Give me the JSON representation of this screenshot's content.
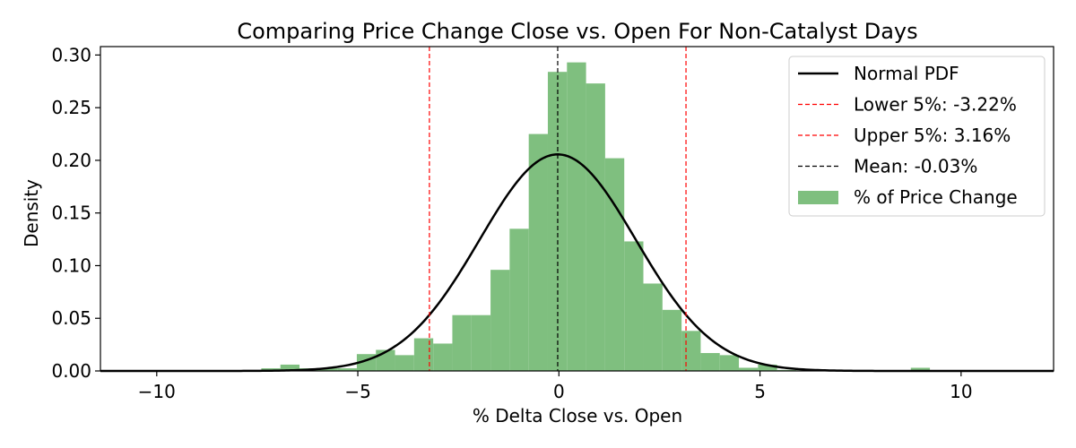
{
  "chart_data": {
    "type": "histogram",
    "title": "Comparing Price Change Close vs. Open For Non-Catalyst Days",
    "xlabel": "% Delta Close vs. Open",
    "ylabel": "Density",
    "xlim": [
      -11.4,
      12.3
    ],
    "ylim": [
      0,
      0.308
    ],
    "xticks": [
      -10,
      -5,
      0,
      5,
      10
    ],
    "xtick_labels": [
      "−10",
      "−5",
      "0",
      "5",
      "10"
    ],
    "yticks": [
      0.0,
      0.05,
      0.1,
      0.15,
      0.2,
      0.25,
      0.3
    ],
    "ytick_labels": [
      "0.00",
      "0.05",
      "0.10",
      "0.15",
      "0.20",
      "0.25",
      "0.30"
    ],
    "grid": false,
    "legend_position": "top-right",
    "histogram": {
      "name": "% of Price Change",
      "color": "#7fbf7f",
      "bin_width": 0.475,
      "bins": [
        [
          -11.2,
          0.0006
        ],
        [
          -10.725,
          0.0006
        ],
        [
          -10.25,
          0.0006
        ],
        [
          -9.775,
          0.0006
        ],
        [
          -9.3,
          0.0006
        ],
        [
          -8.825,
          0.0006
        ],
        [
          -8.35,
          0.0006
        ],
        [
          -7.875,
          0.0006
        ],
        [
          -7.4,
          0.0025
        ],
        [
          -6.925,
          0.006
        ],
        [
          -6.45,
          0.0025
        ],
        [
          -5.975,
          0.0025
        ],
        [
          -5.5,
          0.0025
        ],
        [
          -5.025,
          0.016
        ],
        [
          -4.55,
          0.02
        ],
        [
          -4.075,
          0.015
        ],
        [
          -3.6,
          0.031
        ],
        [
          -3.125,
          0.026
        ],
        [
          -2.65,
          0.053
        ],
        [
          -2.175,
          0.053
        ],
        [
          -1.7,
          0.096
        ],
        [
          -1.225,
          0.135
        ],
        [
          -0.75,
          0.225
        ],
        [
          -0.275,
          0.284
        ],
        [
          0.2,
          0.293
        ],
        [
          0.675,
          0.273
        ],
        [
          1.15,
          0.202
        ],
        [
          1.625,
          0.123
        ],
        [
          2.1,
          0.083
        ],
        [
          2.575,
          0.058
        ],
        [
          3.05,
          0.038
        ],
        [
          3.525,
          0.017
        ],
        [
          4.0,
          0.015
        ],
        [
          4.475,
          0.003
        ],
        [
          4.95,
          0.006
        ],
        [
          5.425,
          0.001
        ],
        [
          5.9,
          0.0006
        ],
        [
          6.375,
          0.0006
        ],
        [
          6.85,
          0.0006
        ],
        [
          7.325,
          0.0006
        ],
        [
          7.8,
          0.0006
        ],
        [
          8.275,
          0.0006
        ],
        [
          8.75,
          0.003
        ],
        [
          9.225,
          0.0006
        ],
        [
          9.7,
          0.0006
        ],
        [
          10.175,
          0.0006
        ],
        [
          10.65,
          0.0006
        ],
        [
          11.125,
          0.0006
        ],
        [
          11.6,
          0.0006
        ]
      ]
    },
    "normal_pdf": {
      "name": "Normal PDF",
      "mean": -0.03,
      "std": 1.94,
      "color": "#000000"
    },
    "vlines": [
      {
        "name": "Lower 5%: -3.22%",
        "x": -3.22,
        "color": "#ff0000"
      },
      {
        "name": "Upper 5%: 3.16%",
        "x": 3.16,
        "color": "#ff0000"
      },
      {
        "name": "Mean: -0.03%",
        "x": -0.03,
        "color": "#000000"
      }
    ],
    "legend": [
      {
        "label": "Normal PDF",
        "kind": "line",
        "color": "#000000"
      },
      {
        "label": "Lower 5%: -3.22%",
        "kind": "dash",
        "color": "#ff0000"
      },
      {
        "label": "Upper 5%: 3.16%",
        "kind": "dash",
        "color": "#ff0000"
      },
      {
        "label": "Mean: -0.03%",
        "kind": "dash",
        "color": "#000000"
      },
      {
        "label": "% of Price Change",
        "kind": "patch",
        "color": "#7fbf7f"
      }
    ]
  }
}
